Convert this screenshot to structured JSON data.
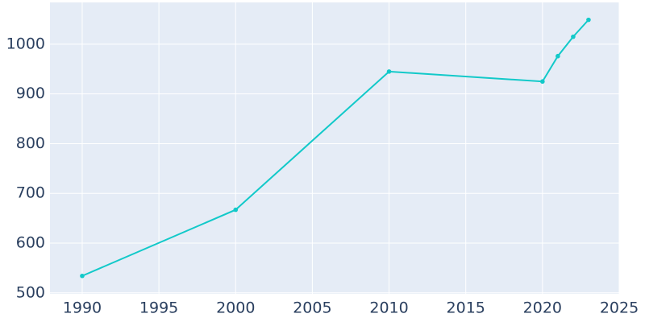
{
  "chart_data": {
    "type": "line",
    "x": [
      1990,
      2000,
      2010,
      2020,
      2021,
      2022,
      2023
    ],
    "series": [
      {
        "color": "#12c9c9",
        "values": [
          534,
          667,
          945,
          925,
          976,
          1015,
          1049
        ]
      }
    ],
    "xlim": [
      1987.9,
      2025
    ],
    "xticks": [
      1990,
      1995,
      2000,
      2005,
      2010,
      2015,
      2020,
      2025
    ],
    "ylim": [
      498,
      1084
    ],
    "yticks": [
      500,
      600,
      700,
      800,
      900,
      1000
    ],
    "grid": true
  }
}
